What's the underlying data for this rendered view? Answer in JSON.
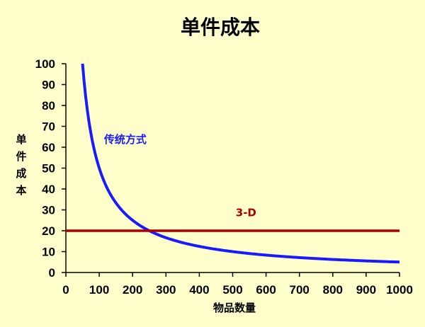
{
  "chart_data": {
    "type": "line",
    "title": "单件成本",
    "xlabel": "物品数量",
    "ylabel": "单件成本",
    "xlim": [
      0,
      1000
    ],
    "ylim": [
      0,
      100
    ],
    "x_ticks": [
      0,
      100,
      200,
      300,
      400,
      500,
      600,
      700,
      800,
      900,
      1000
    ],
    "y_ticks": [
      0,
      10,
      20,
      30,
      40,
      50,
      60,
      70,
      80,
      90,
      100
    ],
    "grid": false,
    "series": [
      {
        "name": "传统方式",
        "color": "#1a1aff",
        "x": [
          50,
          60,
          70,
          80,
          100,
          120,
          150,
          200,
          250,
          300,
          400,
          500,
          600,
          700,
          800,
          900,
          1000
        ],
        "y": [
          100,
          83.3,
          71.4,
          62.5,
          50,
          41.7,
          33.3,
          25,
          20,
          16.7,
          12.5,
          10,
          8.3,
          7.1,
          6.25,
          5.6,
          5
        ]
      },
      {
        "name": "3-D",
        "color": "#aa0000",
        "x": [
          0,
          1000
        ],
        "y": [
          20,
          20
        ]
      }
    ],
    "annotations": [
      {
        "text": "传统方式",
        "series": 0,
        "at": [
          178,
          62
        ]
      },
      {
        "text": "3-D",
        "series": 1,
        "at": [
          540,
          27
        ]
      }
    ]
  }
}
